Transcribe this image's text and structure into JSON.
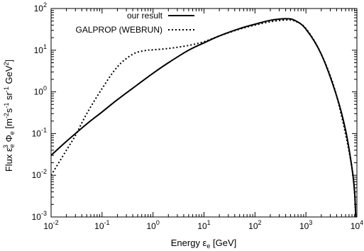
{
  "chart_data": {
    "type": "line",
    "title": "",
    "xlabel": {
      "text": "Energy ε",
      "sub": "e",
      "unit": " [GeV]"
    },
    "ylabel": {
      "prefix": "Flux ε",
      "sub1": "e",
      "sup1": "3",
      "mid": " Φ",
      "sub2": "e",
      "suffix": " [m",
      "sup_a": "-2",
      "part_b": "s",
      "sup_b": "-1",
      "part_c": " sr",
      "sup_c": "-1",
      "part_d": " GeV",
      "sup_d": "2",
      "end": "]"
    },
    "x_scale": "log",
    "y_scale": "log",
    "xlim": [
      0.01,
      10000
    ],
    "ylim": [
      0.001,
      100
    ],
    "x_ticks": [
      {
        "value": 0.01,
        "base": "10",
        "exp": "-2"
      },
      {
        "value": 0.1,
        "base": "10",
        "exp": "-1"
      },
      {
        "value": 1,
        "base": "10",
        "exp": "0"
      },
      {
        "value": 10,
        "base": "10",
        "exp": "1"
      },
      {
        "value": 100,
        "base": "10",
        "exp": "2"
      },
      {
        "value": 1000,
        "base": "10",
        "exp": "3"
      },
      {
        "value": 10000,
        "base": "10",
        "exp": "4"
      }
    ],
    "y_ticks": [
      {
        "value": 0.001,
        "base": "10",
        "exp": "-3"
      },
      {
        "value": 0.01,
        "base": "10",
        "exp": "-2"
      },
      {
        "value": 0.1,
        "base": "10",
        "exp": "-1"
      },
      {
        "value": 1,
        "base": "10",
        "exp": "0"
      },
      {
        "value": 10,
        "base": "10",
        "exp": "1"
      },
      {
        "value": 100,
        "base": "10",
        "exp": "2"
      }
    ],
    "grid": false,
    "legend_position": "top-left",
    "series": [
      {
        "name": "our result",
        "style": "solid",
        "color": "#000000",
        "points": [
          [
            0.01,
            0.03
          ],
          [
            0.02,
            0.065
          ],
          [
            0.05,
            0.17
          ],
          [
            0.1,
            0.33
          ],
          [
            0.2,
            0.65
          ],
          [
            0.5,
            1.5
          ],
          [
            1,
            2.8
          ],
          [
            2,
            5
          ],
          [
            5,
            10
          ],
          [
            10,
            15
          ],
          [
            20,
            22
          ],
          [
            50,
            33
          ],
          [
            100,
            42
          ],
          [
            200,
            52
          ],
          [
            400,
            57
          ],
          [
            600,
            52
          ],
          [
            1000,
            32
          ],
          [
            2000,
            8
          ],
          [
            4000,
            0.8
          ],
          [
            6000,
            0.12
          ],
          [
            8000,
            0.015
          ],
          [
            9000,
            0.004
          ],
          [
            9500,
            0.001
          ]
        ]
      },
      {
        "name": "GALPROP (WEBRUN)",
        "style": "dotted",
        "color": "#000000",
        "points": [
          [
            0.01,
            0.01
          ],
          [
            0.02,
            0.04
          ],
          [
            0.03,
            0.09
          ],
          [
            0.05,
            0.3
          ],
          [
            0.1,
            1.2
          ],
          [
            0.2,
            4
          ],
          [
            0.4,
            8
          ],
          [
            0.7,
            9.8
          ],
          [
            1,
            10.2
          ],
          [
            2,
            11
          ],
          [
            5,
            13
          ],
          [
            10,
            16
          ],
          [
            20,
            22
          ],
          [
            50,
            32
          ],
          [
            100,
            40
          ],
          [
            200,
            48
          ],
          [
            400,
            53
          ],
          [
            600,
            50
          ],
          [
            1000,
            33
          ],
          [
            2000,
            8
          ],
          [
            4000,
            0.8
          ],
          [
            8000,
            0.015
          ],
          [
            9500,
            0.001
          ]
        ]
      }
    ]
  }
}
